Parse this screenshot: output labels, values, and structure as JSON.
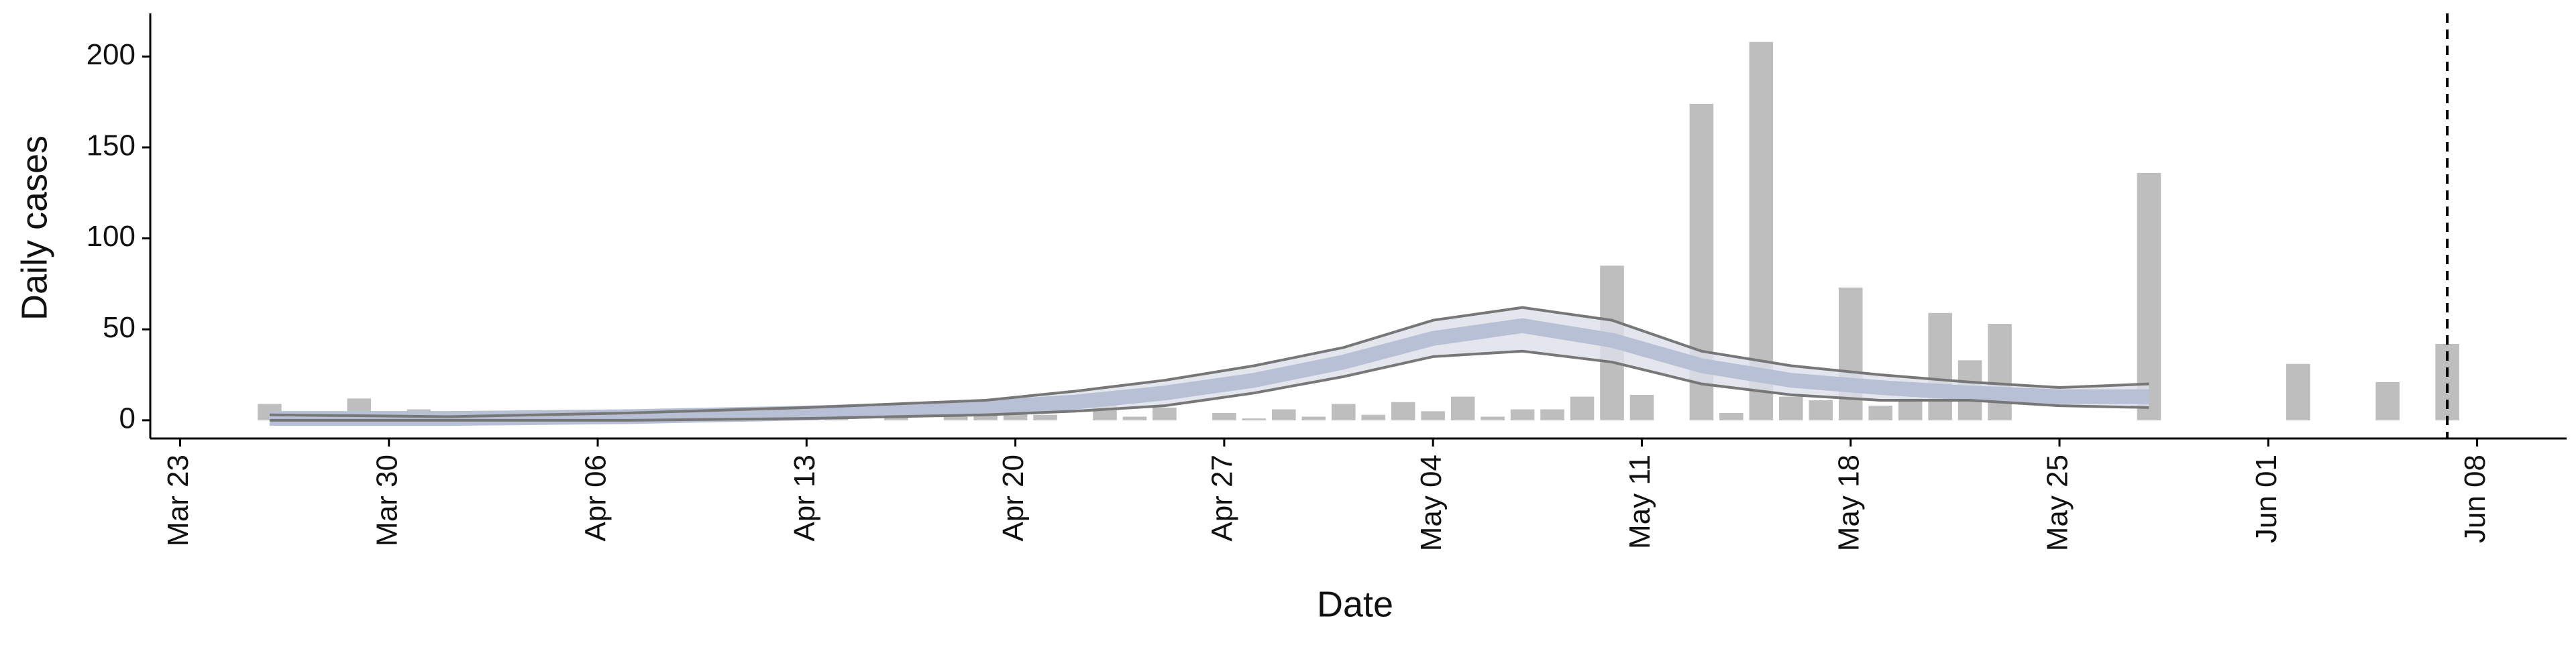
{
  "chart_data": {
    "type": "bar",
    "x_label": "Date",
    "y_label": "Daily cases",
    "x": [
      "03-26",
      "03-28",
      "03-29",
      "03-30",
      "03-31",
      "04-03",
      "04-13",
      "04-14",
      "04-16",
      "04-18",
      "04-19",
      "04-20",
      "04-21",
      "04-23",
      "04-24",
      "04-25",
      "04-27",
      "04-28",
      "04-29",
      "04-30",
      "05-01",
      "05-02",
      "05-03",
      "05-04",
      "05-05",
      "05-06",
      "05-07",
      "05-08",
      "05-09",
      "05-10",
      "05-11",
      "05-13",
      "05-14",
      "05-15",
      "05-16",
      "05-17",
      "05-18",
      "05-19",
      "05-20",
      "05-21",
      "05-22",
      "05-23",
      "05-28",
      "06-02",
      "06-05",
      "06-07"
    ],
    "values": [
      9,
      2,
      12,
      2,
      6,
      2,
      2,
      2,
      2,
      2,
      3,
      4,
      3,
      10,
      2,
      7,
      4,
      1,
      6,
      2,
      9,
      3,
      10,
      5,
      13,
      2,
      6,
      6,
      13,
      85,
      14,
      174,
      4,
      208,
      13,
      11,
      73,
      8,
      12,
      59,
      33,
      53,
      136,
      31,
      21,
      42
    ],
    "color": "#bebebe",
    "ribbon": {
      "x": [
        "03-26",
        "04-01",
        "04-07",
        "04-13",
        "04-19",
        "04-22",
        "04-25",
        "04-28",
        "05-01",
        "05-04",
        "05-07",
        "05-10",
        "05-13",
        "05-16",
        "05-19",
        "05-22",
        "05-25",
        "05-28"
      ],
      "upper": [
        3,
        2,
        4,
        7,
        11,
        16,
        22,
        30,
        40,
        55,
        62,
        55,
        38,
        30,
        25,
        21,
        18,
        20
      ],
      "lower": [
        0,
        0,
        0,
        1,
        3,
        5,
        8,
        15,
        24,
        35,
        38,
        32,
        20,
        14,
        11,
        11,
        8,
        7
      ],
      "median": [
        1,
        1,
        2,
        4,
        7,
        10,
        15,
        22,
        32,
        45,
        52,
        44,
        30,
        22,
        18,
        15,
        13,
        13
      ],
      "fill": "#dde0ea",
      "median_color": "#b8c0d6",
      "line_color": "#777777"
    },
    "vline": "06-07",
    "xlim": [
      "03-22",
      "06-11"
    ],
    "xticks": [
      {
        "value": "03-23",
        "label": "Mar 23"
      },
      {
        "value": "03-30",
        "label": "Mar 30"
      },
      {
        "value": "04-06",
        "label": "Apr 06"
      },
      {
        "value": "04-13",
        "label": "Apr 13"
      },
      {
        "value": "04-20",
        "label": "Apr 20"
      },
      {
        "value": "04-27",
        "label": "Apr 27"
      },
      {
        "value": "05-04",
        "label": "May 04"
      },
      {
        "value": "05-11",
        "label": "May 11"
      },
      {
        "value": "05-18",
        "label": "May 18"
      },
      {
        "value": "05-25",
        "label": "May 25"
      },
      {
        "value": "06-01",
        "label": "Jun 01"
      },
      {
        "value": "06-08",
        "label": "Jun 08"
      }
    ],
    "ylim": [
      -10,
      220
    ],
    "yticks": [
      0,
      50,
      100,
      150,
      200
    ],
    "grid": false
  }
}
